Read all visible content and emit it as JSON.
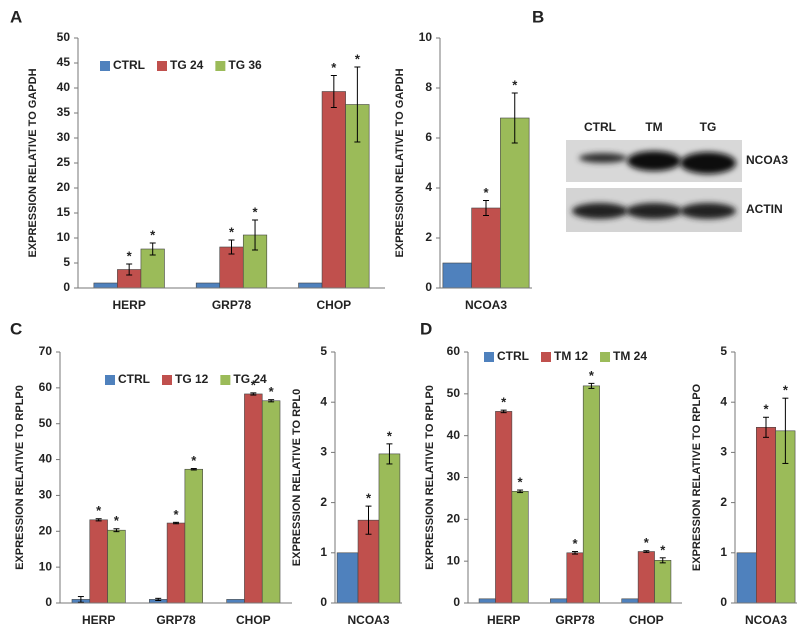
{
  "chart_data": [
    {
      "type": "bar",
      "panel": "A",
      "ylabel": "EXPRESSION  RELATIVE TO GAPDH",
      "categories": [
        "HERP",
        "GRP78",
        "CHOP"
      ],
      "ylim": [
        0,
        50
      ],
      "yticks": [
        0,
        5,
        10,
        15,
        20,
        25,
        30,
        35,
        40,
        45,
        50
      ],
      "legend": "top-left",
      "series": [
        {
          "name": "CTRL",
          "color": "#4f81bd",
          "values": [
            1,
            1,
            1
          ]
        },
        {
          "name": "TG 24",
          "color": "#c0504d",
          "values": [
            3.7,
            8.2,
            39.3
          ],
          "errors": [
            1.1,
            1.4,
            3.2
          ],
          "significance": [
            "*",
            "*",
            "*"
          ]
        },
        {
          "name": "TG 36",
          "color": "#9bbb59",
          "values": [
            7.8,
            10.6,
            36.7
          ],
          "errors": [
            1.2,
            3,
            7.5
          ],
          "significance": [
            "*",
            "*",
            "*"
          ]
        }
      ]
    },
    {
      "type": "bar",
      "ylabel": "EXPRESSION  RELATIVE TO GAPDH",
      "categories": [
        "NCOA3"
      ],
      "ylim": [
        0,
        10
      ],
      "yticks": [
        0,
        2,
        4,
        6,
        8,
        10
      ],
      "series": [
        {
          "color": "#4f81bd",
          "values": [
            1
          ]
        },
        {
          "color": "#c0504d",
          "values": [
            3.2
          ],
          "errors": [
            0.3
          ],
          "significance": [
            "*"
          ]
        },
        {
          "color": "#9bbb59",
          "values": [
            6.8
          ],
          "errors": [
            1.0
          ],
          "significance": [
            "*"
          ]
        }
      ]
    },
    {
      "type": "bar",
      "panel": "C",
      "ylabel": "EXPRESSION  RELATIVE TO RPLP0",
      "categories": [
        "HERP",
        "GRP78",
        "CHOP"
      ],
      "ylim": [
        0,
        70
      ],
      "yticks": [
        0,
        10,
        20,
        30,
        40,
        50,
        60,
        70
      ],
      "legend": "top-left",
      "series": [
        {
          "name": "CTRL",
          "color": "#4f81bd",
          "values": [
            1,
            1,
            1
          ],
          "errors": [
            0.8,
            0.3,
            null
          ]
        },
        {
          "name": "TG 12",
          "color": "#c0504d",
          "values": [
            23.2,
            22.3,
            58.3
          ],
          "errors": [
            0.3,
            0.2,
            0.3
          ],
          "significance": [
            "*",
            "*",
            "*"
          ]
        },
        {
          "name": "TG 24",
          "color": "#9bbb59",
          "values": [
            20.3,
            37.3,
            56.4
          ],
          "errors": [
            0.4,
            0.2,
            0.3
          ],
          "significance": [
            "*",
            "*",
            "*"
          ]
        }
      ]
    },
    {
      "type": "bar",
      "ylabel": "EXPRESSION  RELATIVE TO RPL0",
      "categories": [
        "NCOA3"
      ],
      "ylim": [
        0,
        5
      ],
      "yticks": [
        0,
        1,
        2,
        3,
        4,
        5
      ],
      "series": [
        {
          "color": "#4f81bd",
          "values": [
            1
          ]
        },
        {
          "color": "#c0504d",
          "values": [
            1.65
          ],
          "errors": [
            0.28
          ],
          "significance": [
            "*"
          ]
        },
        {
          "color": "#9bbb59",
          "values": [
            2.97
          ],
          "errors": [
            0.2
          ],
          "significance": [
            "*"
          ]
        }
      ]
    },
    {
      "type": "bar",
      "panel": "D",
      "ylabel": "EXPRESSION RELATIVE TO RPLP0",
      "categories": [
        "HERP",
        "GRP78",
        "CHOP"
      ],
      "ylim": [
        0,
        60
      ],
      "yticks": [
        0,
        10,
        20,
        30,
        40,
        50,
        60
      ],
      "legend": "top-left",
      "series": [
        {
          "name": "CTRL",
          "color": "#4f81bd",
          "values": [
            1,
            1,
            1
          ]
        },
        {
          "name": "TM 12",
          "color": "#c0504d",
          "values": [
            45.8,
            12.0,
            12.3
          ],
          "errors": [
            0.3,
            0.3,
            0.2
          ],
          "significance": [
            "*",
            "*",
            "*"
          ]
        },
        {
          "name": "TM 24",
          "color": "#9bbb59",
          "values": [
            26.7,
            51.9,
            10.2
          ],
          "errors": [
            0.3,
            0.6,
            0.6
          ],
          "significance": [
            "*",
            "*",
            "*"
          ]
        }
      ]
    },
    {
      "type": "bar",
      "ylabel": "EXPRESSION  RELATIVE TO RPLPO",
      "categories": [
        "NCOA3"
      ],
      "ylim": [
        0,
        5
      ],
      "yticks": [
        0,
        1,
        2,
        3,
        4,
        5
      ],
      "series": [
        {
          "color": "#4f81bd",
          "values": [
            1
          ]
        },
        {
          "color": "#c0504d",
          "values": [
            3.5
          ],
          "errors": [
            0.2
          ],
          "significance": [
            "*"
          ]
        },
        {
          "color": "#9bbb59",
          "values": [
            3.43
          ],
          "errors": [
            0.65
          ],
          "significance": [
            "*"
          ]
        }
      ]
    }
  ],
  "blot": {
    "panel": "B",
    "columns": [
      "CTRL",
      "TM",
      "TG"
    ],
    "rows": [
      "NCOA3",
      "ACTIN"
    ]
  }
}
